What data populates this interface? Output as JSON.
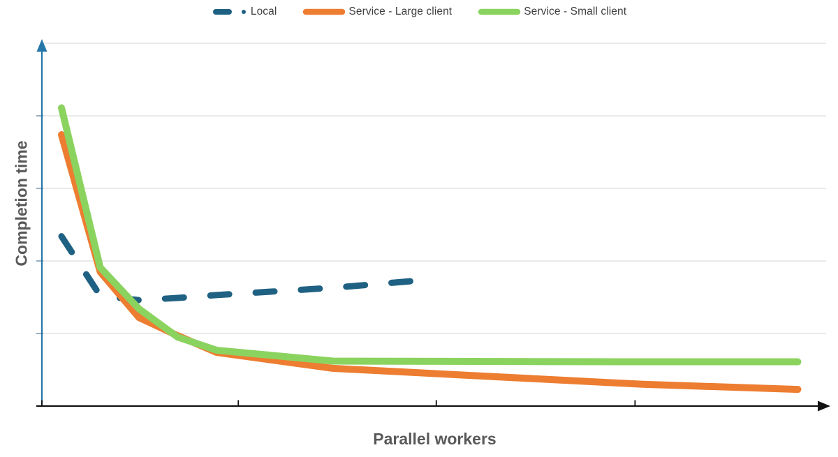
{
  "legend": [
    {
      "label": "Local",
      "color": "#1F6183",
      "style": "dash-dot"
    },
    {
      "label": "Service - Large client",
      "color": "#ED7D31",
      "style": "solid"
    },
    {
      "label": "Service - Small client",
      "color": "#8BD35F",
      "style": "solid"
    }
  ],
  "axes": {
    "x_title": "Parallel workers",
    "y_title": "Completion time",
    "x_axis_color": "#111111",
    "y_axis_color": "#2577A9",
    "gridline_color": "#E4E4E4",
    "tick_labels": "none (axes are unlabeled)"
  },
  "chart_data": {
    "type": "line",
    "title": "",
    "xlabel": "Parallel workers",
    "ylabel": "Completion time",
    "x_units": "parallel workers (no tick labels shown)",
    "y_units": "relative completion time in horizontal-gridline units (no tick labels shown)",
    "ylim": [
      0,
      5
    ],
    "xlim": [
      1,
      20.5
    ],
    "grid": "horizontal gridlines only, 5 lines (y=1..5)",
    "legend_position": "top-center",
    "axis_arrows": "y-axis blue arrow up, x-axis black arrow right",
    "x_ticks_unlabeled_at_fraction_of_axis": [
      0.25,
      0.502,
      0.755
    ],
    "series": [
      {
        "name": "Local",
        "color": "#1F6183",
        "line_style": "dashed",
        "x": [
          1,
          2,
          3,
          4,
          5,
          8,
          10
        ],
        "y": [
          2.34,
          1.52,
          1.46,
          1.49,
          1.53,
          1.63,
          1.72
        ]
      },
      {
        "name": "Service - Large client",
        "color": "#ED7D31",
        "line_style": "solid",
        "x": [
          1,
          2,
          3,
          4,
          5,
          8,
          16,
          20
        ],
        "y": [
          3.74,
          1.85,
          1.22,
          0.97,
          0.74,
          0.52,
          0.3,
          0.23
        ]
      },
      {
        "name": "Service - Small client",
        "color": "#8BD35F",
        "line_style": "solid",
        "x": [
          1,
          2,
          3,
          4,
          5,
          8,
          16,
          20
        ],
        "y": [
          4.11,
          1.91,
          1.34,
          0.95,
          0.77,
          0.62,
          0.61,
          0.61
        ]
      }
    ]
  }
}
